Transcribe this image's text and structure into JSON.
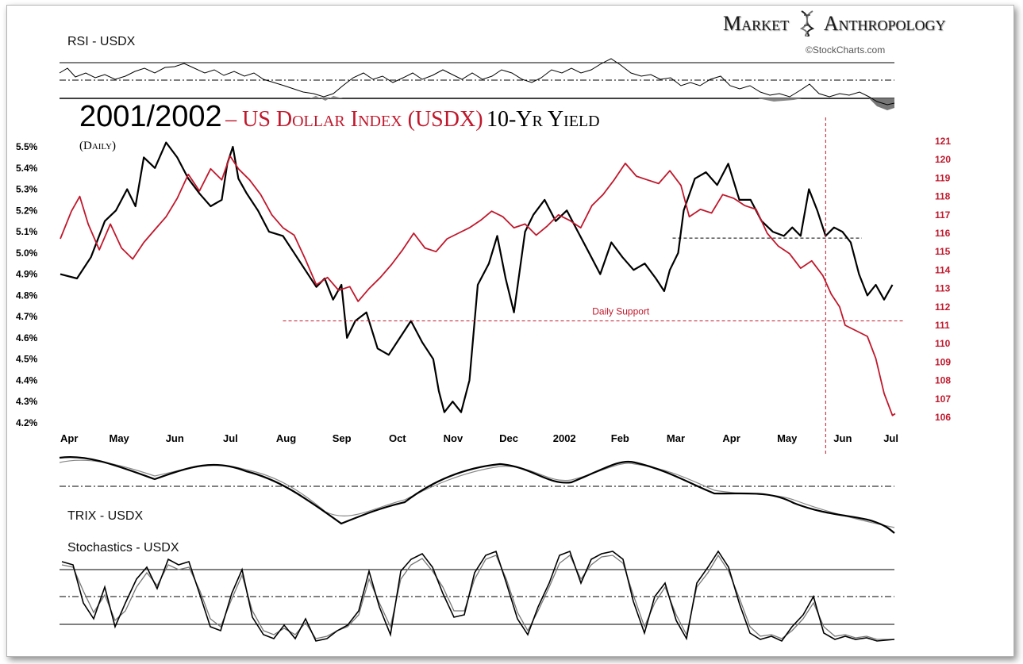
{
  "branding": {
    "name_part1": "Market",
    "name_part2": "Anthropology",
    "copyright": "©StockCharts.com"
  },
  "title": {
    "years": "2001/2002",
    "usdx": "– US Dollar Index (USDX)",
    "yield": "10-Yr Yield",
    "subtitle": "(Daily)"
  },
  "colors": {
    "usdx": "#c0182c",
    "yield": "#000000",
    "annotation": "#c0182c"
  },
  "indicators": {
    "rsi_label": "RSI - USDX",
    "trix_label": "TRIX - USDX",
    "stoch_label": "Stochastics - USDX"
  },
  "chart_data": {
    "type": "line",
    "title": "2001/2002 – US Dollar Index (USDX) 10-Yr Yield",
    "x_labels": [
      "Apr",
      "May",
      "Jun",
      "Jul",
      "Aug",
      "Sep",
      "Oct",
      "Nov",
      "Dec",
      "2002",
      "Feb",
      "Mar",
      "Apr",
      "May",
      "Jun",
      "Jul"
    ],
    "x_range": [
      0,
      15
    ],
    "y_left": {
      "label": "",
      "range": [
        4.2,
        5.5
      ],
      "ticks": [
        "5.5%",
        "5.4%",
        "5.3%",
        "5.2%",
        "5.1%",
        "5.0%",
        "4.9%",
        "4.8%",
        "4.7%",
        "4.6%",
        "4.5%",
        "4.4%",
        "4.3%",
        "4.2%"
      ]
    },
    "y_right": {
      "label": "",
      "range": [
        106,
        121
      ],
      "ticks": [
        "121",
        "120",
        "119",
        "118",
        "117",
        "116",
        "115",
        "114",
        "113",
        "112",
        "111",
        "110",
        "109",
        "108",
        "107",
        "106"
      ]
    },
    "series": [
      {
        "name": "10-Yr Yield",
        "axis": "left",
        "points": [
          [
            0.0,
            4.9
          ],
          [
            0.3,
            4.88
          ],
          [
            0.55,
            4.98
          ],
          [
            0.8,
            5.15
          ],
          [
            1.0,
            5.2
          ],
          [
            1.2,
            5.3
          ],
          [
            1.35,
            5.22
          ],
          [
            1.5,
            5.45
          ],
          [
            1.7,
            5.4
          ],
          [
            1.9,
            5.52
          ],
          [
            2.1,
            5.45
          ],
          [
            2.3,
            5.35
          ],
          [
            2.5,
            5.28
          ],
          [
            2.7,
            5.22
          ],
          [
            2.9,
            5.25
          ],
          [
            3.0,
            5.42
          ],
          [
            3.1,
            5.5
          ],
          [
            3.2,
            5.35
          ],
          [
            3.35,
            5.28
          ],
          [
            3.55,
            5.2
          ],
          [
            3.75,
            5.1
          ],
          [
            4.0,
            5.08
          ],
          [
            4.2,
            5.0
          ],
          [
            4.4,
            4.92
          ],
          [
            4.6,
            4.84
          ],
          [
            4.75,
            4.88
          ],
          [
            4.9,
            4.78
          ],
          [
            5.05,
            4.85
          ],
          [
            5.15,
            4.6
          ],
          [
            5.3,
            4.68
          ],
          [
            5.5,
            4.72
          ],
          [
            5.7,
            4.55
          ],
          [
            5.9,
            4.52
          ],
          [
            6.1,
            4.6
          ],
          [
            6.3,
            4.68
          ],
          [
            6.5,
            4.58
          ],
          [
            6.7,
            4.5
          ],
          [
            6.8,
            4.35
          ],
          [
            6.9,
            4.25
          ],
          [
            7.05,
            4.3
          ],
          [
            7.2,
            4.25
          ],
          [
            7.35,
            4.4
          ],
          [
            7.5,
            4.85
          ],
          [
            7.7,
            4.95
          ],
          [
            7.85,
            5.08
          ],
          [
            8.0,
            4.88
          ],
          [
            8.15,
            4.72
          ],
          [
            8.35,
            5.1
          ],
          [
            8.5,
            5.18
          ],
          [
            8.7,
            5.25
          ],
          [
            8.9,
            5.15
          ],
          [
            9.1,
            5.2
          ],
          [
            9.3,
            5.1
          ],
          [
            9.5,
            5.0
          ],
          [
            9.7,
            4.9
          ],
          [
            9.9,
            5.05
          ],
          [
            10.1,
            4.98
          ],
          [
            10.3,
            4.92
          ],
          [
            10.5,
            4.95
          ],
          [
            10.7,
            4.88
          ],
          [
            10.85,
            4.82
          ],
          [
            10.95,
            4.92
          ],
          [
            11.1,
            5.0
          ],
          [
            11.2,
            5.2
          ],
          [
            11.4,
            5.35
          ],
          [
            11.6,
            5.38
          ],
          [
            11.8,
            5.32
          ],
          [
            12.0,
            5.42
          ],
          [
            12.2,
            5.25
          ],
          [
            12.4,
            5.25
          ],
          [
            12.6,
            5.15
          ],
          [
            12.8,
            5.1
          ],
          [
            13.0,
            5.08
          ],
          [
            13.15,
            5.12
          ],
          [
            13.3,
            5.08
          ],
          [
            13.45,
            5.3
          ],
          [
            13.6,
            5.2
          ],
          [
            13.75,
            5.08
          ],
          [
            13.9,
            5.12
          ],
          [
            14.05,
            5.1
          ],
          [
            14.2,
            5.05
          ],
          [
            14.35,
            4.9
          ],
          [
            14.5,
            4.8
          ],
          [
            14.65,
            4.85
          ],
          [
            14.8,
            4.78
          ],
          [
            14.95,
            4.85
          ]
        ]
      },
      {
        "name": "USDX",
        "axis": "right",
        "points": [
          [
            0.0,
            116
          ],
          [
            0.2,
            117.5
          ],
          [
            0.35,
            118.3
          ],
          [
            0.5,
            116.8
          ],
          [
            0.7,
            115.4
          ],
          [
            0.9,
            116.8
          ],
          [
            1.1,
            115.5
          ],
          [
            1.3,
            114.9
          ],
          [
            1.5,
            115.8
          ],
          [
            1.7,
            116.5
          ],
          [
            1.9,
            117.2
          ],
          [
            2.1,
            118.2
          ],
          [
            2.3,
            119.5
          ],
          [
            2.5,
            118.6
          ],
          [
            2.7,
            119.8
          ],
          [
            2.9,
            119.2
          ],
          [
            3.05,
            120.5
          ],
          [
            3.2,
            119.8
          ],
          [
            3.4,
            119.2
          ],
          [
            3.6,
            118.4
          ],
          [
            3.8,
            117.3
          ],
          [
            4.0,
            116.6
          ],
          [
            4.2,
            116.2
          ],
          [
            4.4,
            114.9
          ],
          [
            4.6,
            113.5
          ],
          [
            4.8,
            113.9
          ],
          [
            5.0,
            113.2
          ],
          [
            5.2,
            113.4
          ],
          [
            5.35,
            112.6
          ],
          [
            5.55,
            113.3
          ],
          [
            5.75,
            113.9
          ],
          [
            5.95,
            114.6
          ],
          [
            6.15,
            115.4
          ],
          [
            6.35,
            116.3
          ],
          [
            6.55,
            115.5
          ],
          [
            6.75,
            115.3
          ],
          [
            6.95,
            116.0
          ],
          [
            7.15,
            116.3
          ],
          [
            7.35,
            116.6
          ],
          [
            7.55,
            117.0
          ],
          [
            7.75,
            117.5
          ],
          [
            7.95,
            117.2
          ],
          [
            8.15,
            116.6
          ],
          [
            8.35,
            116.8
          ],
          [
            8.55,
            116.2
          ],
          [
            8.75,
            116.7
          ],
          [
            8.95,
            117.3
          ],
          [
            9.15,
            117.0
          ],
          [
            9.35,
            116.6
          ],
          [
            9.55,
            117.8
          ],
          [
            9.75,
            118.4
          ],
          [
            9.95,
            119.2
          ],
          [
            10.15,
            120.1
          ],
          [
            10.35,
            119.4
          ],
          [
            10.55,
            119.2
          ],
          [
            10.75,
            119.0
          ],
          [
            10.95,
            119.7
          ],
          [
            11.15,
            118.9
          ],
          [
            11.3,
            117.2
          ],
          [
            11.5,
            117.6
          ],
          [
            11.7,
            117.4
          ],
          [
            11.9,
            118.4
          ],
          [
            12.1,
            118.2
          ],
          [
            12.3,
            117.8
          ],
          [
            12.5,
            117.6
          ],
          [
            12.7,
            116.3
          ],
          [
            12.9,
            115.6
          ],
          [
            13.1,
            115.2
          ],
          [
            13.3,
            114.4
          ],
          [
            13.5,
            114.8
          ],
          [
            13.7,
            114.0
          ],
          [
            13.85,
            113.0
          ],
          [
            14.0,
            112.3
          ],
          [
            14.1,
            111.3
          ],
          [
            14.3,
            111.0
          ],
          [
            14.5,
            110.7
          ],
          [
            14.65,
            109.5
          ],
          [
            14.8,
            107.6
          ],
          [
            14.95,
            106.4
          ],
          [
            15.0,
            106.5
          ]
        ]
      }
    ],
    "annotations": [
      {
        "text": "Daily Support",
        "type": "hline",
        "axis": "left",
        "value": 4.68,
        "x_start": 4.0,
        "x_end": 15.0
      },
      {
        "text": "",
        "type": "hline",
        "axis": "left",
        "value": 5.07,
        "x_start": 11.0,
        "x_end": 14.4
      },
      {
        "text": "",
        "type": "vline",
        "x": 13.75
      }
    ]
  }
}
